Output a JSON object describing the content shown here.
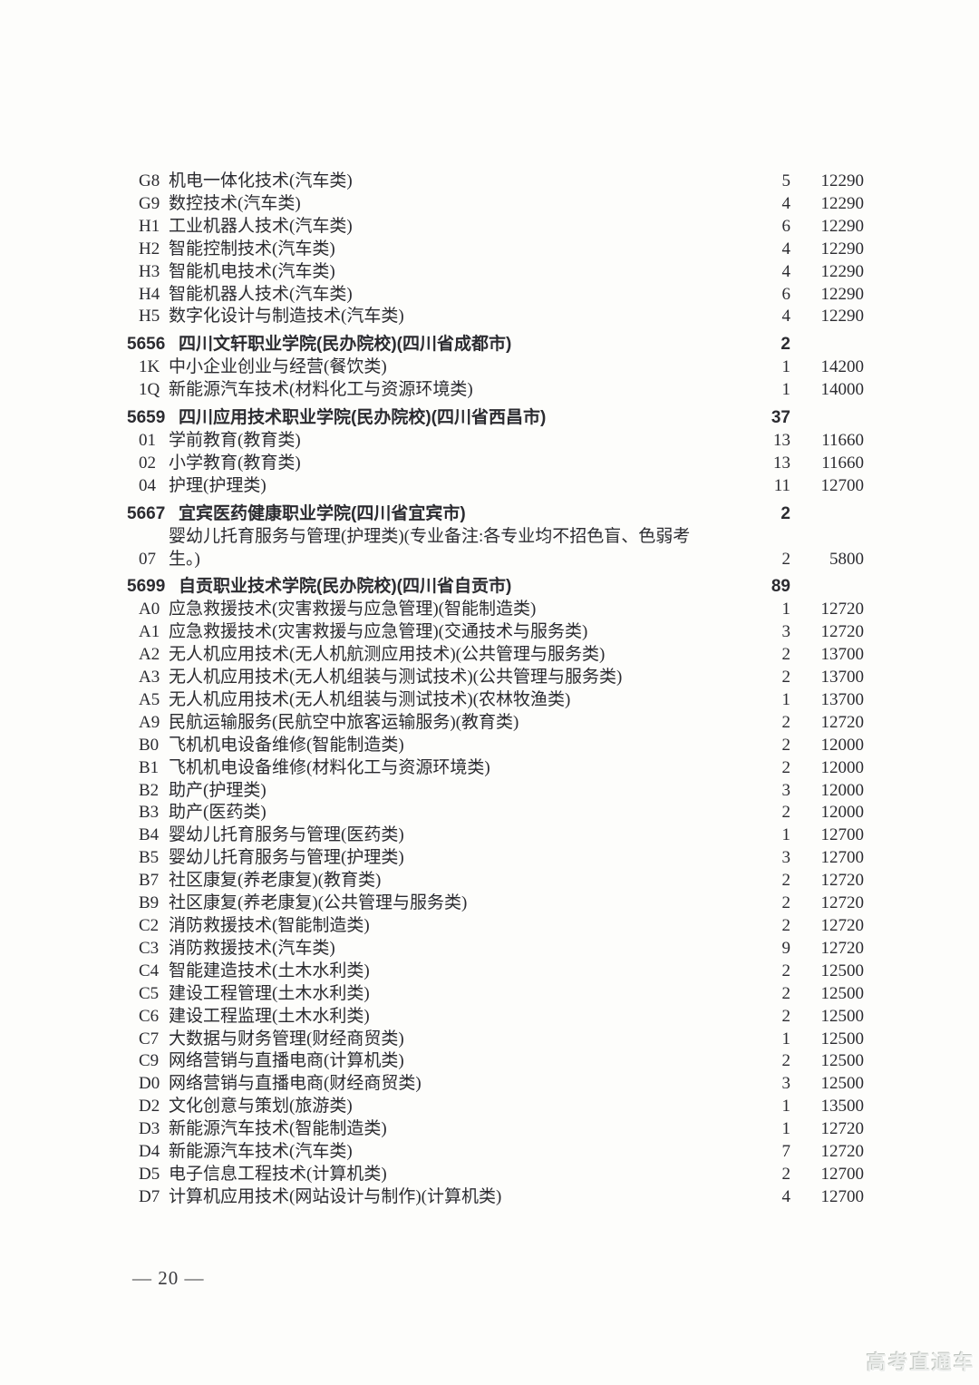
{
  "page": {
    "number": "20",
    "number_display": "— 20 —",
    "watermark": "高考直通车"
  },
  "table": {
    "blocks": [
      {
        "header": null,
        "rows": [
          {
            "code": "G8",
            "name": "机电一体化技术(汽车类)",
            "quota": "5",
            "fee": "12290"
          },
          {
            "code": "G9",
            "name": "数控技术(汽车类)",
            "quota": "4",
            "fee": "12290"
          },
          {
            "code": "H1",
            "name": "工业机器人技术(汽车类)",
            "quota": "6",
            "fee": "12290"
          },
          {
            "code": "H2",
            "name": "智能控制技术(汽车类)",
            "quota": "4",
            "fee": "12290"
          },
          {
            "code": "H3",
            "name": "智能机电技术(汽车类)",
            "quota": "4",
            "fee": "12290"
          },
          {
            "code": "H4",
            "name": "智能机器人技术(汽车类)",
            "quota": "6",
            "fee": "12290"
          },
          {
            "code": "H5",
            "name": "数字化设计与制造技术(汽车类)",
            "quota": "4",
            "fee": "12290"
          }
        ]
      },
      {
        "header": {
          "code": "5656",
          "title": "四川文轩职业学院(民办院校)(四川省成都市)",
          "quota": "2"
        },
        "rows": [
          {
            "code": "1K",
            "name": "中小企业创业与经营(餐饮类)",
            "quota": "1",
            "fee": "14200"
          },
          {
            "code": "1Q",
            "name": "新能源汽车技术(材料化工与资源环境类)",
            "quota": "1",
            "fee": "14000"
          }
        ]
      },
      {
        "header": {
          "code": "5659",
          "title": "四川应用技术职业学院(民办院校)(四川省西昌市)",
          "quota": "37"
        },
        "rows": [
          {
            "code": "01",
            "name": "学前教育(教育类)",
            "quota": "13",
            "fee": "11660"
          },
          {
            "code": "02",
            "name": "小学教育(教育类)",
            "quota": "13",
            "fee": "11660"
          },
          {
            "code": "04",
            "name": "护理(护理类)",
            "quota": "11",
            "fee": "12700"
          }
        ]
      },
      {
        "header": {
          "code": "5667",
          "title": "宜宾医药健康职业学院(四川省宜宾市)",
          "quota": "2"
        },
        "rows": [
          {
            "code": "07",
            "name": "婴幼儿托育服务与管理(护理类)(专业备注:各专业均不招色盲、色弱考生。)",
            "quota": "2",
            "fee": "5800",
            "wrap": true
          }
        ]
      },
      {
        "header": {
          "code": "5699",
          "title": "自贡职业技术学院(民办院校)(四川省自贡市)",
          "quota": "89"
        },
        "rows": [
          {
            "code": "A0",
            "name": "应急救援技术(灾害救援与应急管理)(智能制造类)",
            "quota": "1",
            "fee": "12720"
          },
          {
            "code": "A1",
            "name": "应急救援技术(灾害救援与应急管理)(交通技术与服务类)",
            "quota": "3",
            "fee": "12720"
          },
          {
            "code": "A2",
            "name": "无人机应用技术(无人机航测应用技术)(公共管理与服务类)",
            "quota": "2",
            "fee": "13700"
          },
          {
            "code": "A3",
            "name": "无人机应用技术(无人机组装与测试技术)(公共管理与服务类)",
            "quota": "2",
            "fee": "13700"
          },
          {
            "code": "A5",
            "name": "无人机应用技术(无人机组装与测试技术)(农林牧渔类)",
            "quota": "1",
            "fee": "13700"
          },
          {
            "code": "A9",
            "name": "民航运输服务(民航空中旅客运输服务)(教育类)",
            "quota": "2",
            "fee": "12720"
          },
          {
            "code": "B0",
            "name": "飞机机电设备维修(智能制造类)",
            "quota": "2",
            "fee": "12000"
          },
          {
            "code": "B1",
            "name": "飞机机电设备维修(材料化工与资源环境类)",
            "quota": "2",
            "fee": "12000"
          },
          {
            "code": "B2",
            "name": "助产(护理类)",
            "quota": "3",
            "fee": "12000"
          },
          {
            "code": "B3",
            "name": "助产(医药类)",
            "quota": "2",
            "fee": "12000"
          },
          {
            "code": "B4",
            "name": "婴幼儿托育服务与管理(医药类)",
            "quota": "1",
            "fee": "12700"
          },
          {
            "code": "B5",
            "name": "婴幼儿托育服务与管理(护理类)",
            "quota": "3",
            "fee": "12700"
          },
          {
            "code": "B7",
            "name": "社区康复(养老康复)(教育类)",
            "quota": "2",
            "fee": "12720"
          },
          {
            "code": "B9",
            "name": "社区康复(养老康复)(公共管理与服务类)",
            "quota": "2",
            "fee": "12720"
          },
          {
            "code": "C2",
            "name": "消防救援技术(智能制造类)",
            "quota": "2",
            "fee": "12720"
          },
          {
            "code": "C3",
            "name": "消防救援技术(汽车类)",
            "quota": "9",
            "fee": "12720"
          },
          {
            "code": "C4",
            "name": "智能建造技术(土木水利类)",
            "quota": "2",
            "fee": "12500"
          },
          {
            "code": "C5",
            "name": "建设工程管理(土木水利类)",
            "quota": "2",
            "fee": "12500"
          },
          {
            "code": "C6",
            "name": "建设工程监理(土木水利类)",
            "quota": "2",
            "fee": "12500"
          },
          {
            "code": "C7",
            "name": "大数据与财务管理(财经商贸类)",
            "quota": "1",
            "fee": "12500"
          },
          {
            "code": "C9",
            "name": "网络营销与直播电商(计算机类)",
            "quota": "2",
            "fee": "12500"
          },
          {
            "code": "D0",
            "name": "网络营销与直播电商(财经商贸类)",
            "quota": "3",
            "fee": "12500"
          },
          {
            "code": "D2",
            "name": "文化创意与策划(旅游类)",
            "quota": "1",
            "fee": "13500"
          },
          {
            "code": "D3",
            "name": "新能源汽车技术(智能制造类)",
            "quota": "1",
            "fee": "12720"
          },
          {
            "code": "D4",
            "name": "新能源汽车技术(汽车类)",
            "quota": "7",
            "fee": "12720"
          },
          {
            "code": "D5",
            "name": "电子信息工程技术(计算机类)",
            "quota": "2",
            "fee": "12700"
          },
          {
            "code": "D7",
            "name": "计算机应用技术(网站设计与制作)(计算机类)",
            "quota": "4",
            "fee": "12700"
          }
        ]
      }
    ]
  }
}
